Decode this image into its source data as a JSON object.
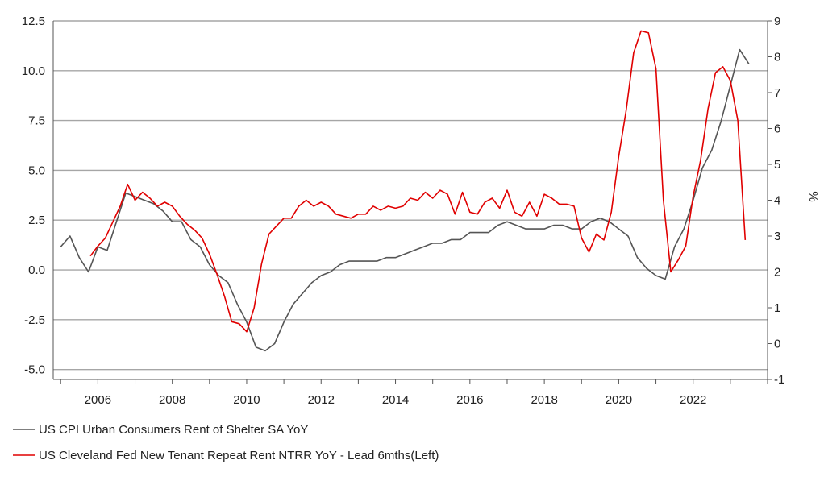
{
  "chart_data": {
    "type": "line",
    "title": "",
    "xlabel": "",
    "ylabel_left": "",
    "ylabel_right": "%",
    "grid": true,
    "legend_position": "bottom-left",
    "xlim": [
      2004.8,
      2024.0
    ],
    "ylim_left": [
      -5.5,
      12.5
    ],
    "ylim_right": [
      -1,
      9
    ],
    "x_ticks": [
      "2006",
      "2008",
      "2010",
      "2012",
      "2014",
      "2016",
      "2018",
      "2020",
      "2022"
    ],
    "y_ticks_left": [
      "12.5",
      "10.0",
      "7.5",
      "5.0",
      "2.5",
      "0.0",
      "-2.5",
      "-5.0"
    ],
    "y_ticks_right": [
      "9",
      "8",
      "7",
      "6",
      "5",
      "4",
      "3",
      "2",
      "1",
      "0",
      "-1"
    ],
    "series": [
      {
        "name": "US CPI Urban Consumers Rent of Shelter SA YoY",
        "axis": "right",
        "color": "#555555",
        "x": [
          2005.0,
          2005.25,
          2005.5,
          2005.75,
          2006.0,
          2006.25,
          2006.5,
          2006.75,
          2007.0,
          2007.25,
          2007.5,
          2007.75,
          2008.0,
          2008.25,
          2008.5,
          2008.75,
          2009.0,
          2009.25,
          2009.5,
          2009.75,
          2010.0,
          2010.25,
          2010.5,
          2010.75,
          2011.0,
          2011.25,
          2011.5,
          2011.75,
          2012.0,
          2012.25,
          2012.5,
          2012.75,
          2013.0,
          2013.25,
          2013.5,
          2013.75,
          2014.0,
          2014.25,
          2014.5,
          2014.75,
          2015.0,
          2015.25,
          2015.5,
          2015.75,
          2016.0,
          2016.25,
          2016.5,
          2016.75,
          2017.0,
          2017.25,
          2017.5,
          2017.75,
          2018.0,
          2018.25,
          2018.5,
          2018.75,
          2019.0,
          2019.25,
          2019.5,
          2019.75,
          2020.0,
          2020.25,
          2020.5,
          2020.75,
          2021.0,
          2021.25,
          2021.5,
          2021.75,
          2022.0,
          2022.25,
          2022.5,
          2022.75,
          2023.0,
          2023.25,
          2023.5
        ],
        "values": [
          2.7,
          3.0,
          2.4,
          2.0,
          2.7,
          2.6,
          3.4,
          4.2,
          4.1,
          4.0,
          3.9,
          3.7,
          3.4,
          3.4,
          2.9,
          2.7,
          2.2,
          1.9,
          1.7,
          1.1,
          0.6,
          -0.1,
          -0.2,
          0.0,
          0.6,
          1.1,
          1.4,
          1.7,
          1.9,
          2.0,
          2.2,
          2.3,
          2.3,
          2.3,
          2.3,
          2.4,
          2.4,
          2.5,
          2.6,
          2.7,
          2.8,
          2.8,
          2.9,
          2.9,
          3.1,
          3.1,
          3.1,
          3.3,
          3.4,
          3.3,
          3.2,
          3.2,
          3.2,
          3.3,
          3.3,
          3.2,
          3.2,
          3.4,
          3.5,
          3.4,
          3.2,
          3.0,
          2.4,
          2.1,
          1.9,
          1.8,
          2.7,
          3.2,
          4.0,
          4.9,
          5.4,
          6.2,
          7.2,
          8.2,
          7.8
        ]
      },
      {
        "name": "US Cleveland Fed New Tenant Repeat Rent NTRR YoY - Lead 6mths(Left)",
        "axis": "left",
        "color": "#e00000",
        "x": [
          2005.8,
          2006.0,
          2006.2,
          2006.4,
          2006.6,
          2006.8,
          2007.0,
          2007.2,
          2007.4,
          2007.6,
          2007.8,
          2008.0,
          2008.2,
          2008.4,
          2008.6,
          2008.8,
          2009.0,
          2009.2,
          2009.4,
          2009.6,
          2009.8,
          2010.0,
          2010.2,
          2010.4,
          2010.6,
          2010.8,
          2011.0,
          2011.2,
          2011.4,
          2011.6,
          2011.8,
          2012.0,
          2012.2,
          2012.4,
          2012.6,
          2012.8,
          2013.0,
          2013.2,
          2013.4,
          2013.6,
          2013.8,
          2014.0,
          2014.2,
          2014.4,
          2014.6,
          2014.8,
          2015.0,
          2015.2,
          2015.4,
          2015.6,
          2015.8,
          2016.0,
          2016.2,
          2016.4,
          2016.6,
          2016.8,
          2017.0,
          2017.2,
          2017.4,
          2017.6,
          2017.8,
          2018.0,
          2018.2,
          2018.4,
          2018.6,
          2018.8,
          2019.0,
          2019.2,
          2019.4,
          2019.6,
          2019.8,
          2020.0,
          2020.2,
          2020.4,
          2020.6,
          2020.8,
          2021.0,
          2021.2,
          2021.4,
          2021.6,
          2021.8,
          2022.0,
          2022.2,
          2022.4,
          2022.6,
          2022.8,
          2023.0,
          2023.2,
          2023.4
        ],
        "values": [
          0.7,
          1.2,
          1.6,
          2.4,
          3.2,
          4.3,
          3.5,
          3.9,
          3.6,
          3.2,
          3.4,
          3.2,
          2.7,
          2.3,
          2.0,
          1.6,
          0.8,
          -0.2,
          -1.3,
          -2.6,
          -2.7,
          -3.1,
          -1.9,
          0.3,
          1.8,
          2.2,
          2.6,
          2.6,
          3.2,
          3.5,
          3.2,
          3.4,
          3.2,
          2.8,
          2.7,
          2.6,
          2.8,
          2.8,
          3.2,
          3.0,
          3.2,
          3.1,
          3.2,
          3.6,
          3.5,
          3.9,
          3.6,
          4.0,
          3.8,
          2.8,
          3.9,
          2.9,
          2.8,
          3.4,
          3.6,
          3.1,
          4.0,
          2.9,
          2.7,
          3.4,
          2.7,
          3.8,
          3.6,
          3.3,
          3.3,
          3.2,
          1.6,
          0.9,
          1.8,
          1.5,
          2.9,
          5.7,
          8.0,
          10.9,
          12.0,
          11.9,
          10.1,
          3.5,
          -0.1,
          0.5,
          1.2,
          3.7,
          5.5,
          8.1,
          9.9,
          10.2,
          9.5,
          7.5,
          1.5
        ]
      }
    ]
  }
}
